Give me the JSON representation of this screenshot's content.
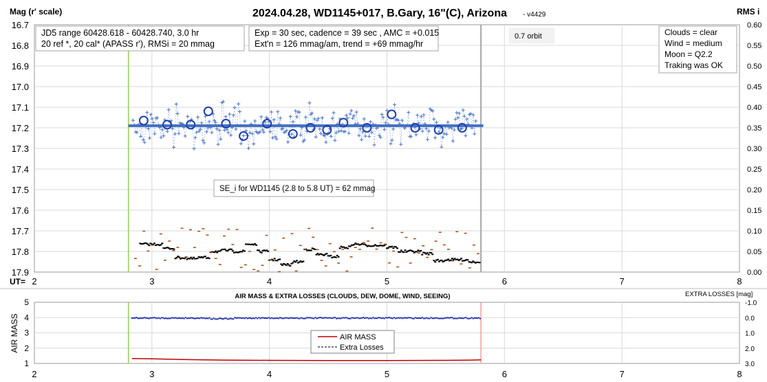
{
  "chart_data": [
    {
      "type": "scatter",
      "title": "2024.04.28, WD1145+017, B.Gary, 16\"(C), Arizona",
      "version": "- v4429",
      "ylabel": "Mag (r' scale)",
      "y2label": "RMS i",
      "xprefix": "UT=",
      "xlim": [
        2,
        8
      ],
      "ylim": [
        16.7,
        17.9
      ],
      "y2lim": [
        0,
        0.6
      ],
      "x_ticks": [
        "2",
        "3",
        "4",
        "5",
        "6",
        "7",
        "8"
      ],
      "y_ticks": [
        "16.7",
        "16.8",
        "16.9",
        "17.0",
        "17.1",
        "17.2",
        "17.3",
        "17.4",
        "17.5",
        "17.6",
        "17.7",
        "17.8",
        "17.9"
      ],
      "y2_ticks": [
        "0.60",
        "0.55",
        "0.50",
        "0.45",
        "0.40",
        "0.35",
        "0.30",
        "0.25",
        "0.20",
        "0.15",
        "0.10",
        "0.05",
        "0.00"
      ],
      "grid": true,
      "colors": {
        "points": "#4a73c6",
        "binned": "#1f3fb0",
        "fit": "#4472c4",
        "rms": "#000000",
        "rms_raw": "#b0521a",
        "start": "#92d050",
        "end": "#a6a6a6"
      },
      "series": [
        {
          "name": "binned",
          "points": [
            [
              2.93,
              17.165
            ],
            [
              3.13,
              17.185
            ],
            [
              3.33,
              17.185
            ],
            [
              3.48,
              17.12
            ],
            [
              3.63,
              17.18
            ],
            [
              3.78,
              17.24
            ],
            [
              3.98,
              17.18
            ],
            [
              4.2,
              17.23
            ],
            [
              4.35,
              17.2
            ],
            [
              4.49,
              17.21
            ],
            [
              4.63,
              17.175
            ],
            [
              4.83,
              17.2
            ],
            [
              5.04,
              17.135
            ],
            [
              5.24,
              17.2
            ],
            [
              5.44,
              17.21
            ],
            [
              5.64,
              17.2
            ]
          ]
        },
        {
          "name": "fit",
          "x": [
            2.8,
            5.82
          ],
          "y": [
            17.19,
            17.19
          ]
        },
        {
          "name": "rms_segments",
          "points": [
            [
              2.9,
              17.765
            ],
            [
              3.0,
              17.765
            ],
            [
              3.1,
              17.785
            ],
            [
              3.2,
              17.83
            ],
            [
              3.3,
              17.835
            ],
            [
              3.4,
              17.83
            ],
            [
              3.5,
              17.8
            ],
            [
              3.6,
              17.795
            ],
            [
              3.7,
              17.8
            ],
            [
              3.8,
              17.765
            ],
            [
              3.9,
              17.8
            ],
            [
              4.0,
              17.84
            ],
            [
              4.1,
              17.865
            ],
            [
              4.2,
              17.85
            ],
            [
              4.3,
              17.79
            ],
            [
              4.4,
              17.815
            ],
            [
              4.5,
              17.825
            ],
            [
              4.6,
              17.78
            ],
            [
              4.7,
              17.765
            ],
            [
              4.8,
              17.77
            ],
            [
              4.9,
              17.77
            ],
            [
              5.0,
              17.78
            ],
            [
              5.1,
              17.8
            ],
            [
              5.2,
              17.8
            ],
            [
              5.3,
              17.81
            ],
            [
              5.4,
              17.845
            ],
            [
              5.5,
              17.84
            ],
            [
              5.6,
              17.84
            ],
            [
              5.7,
              17.85
            ]
          ]
        }
      ],
      "markers": {
        "start": 2.8,
        "end": 5.8
      },
      "annotations": {
        "info_left": [
          "JD5 range 60428.618 - 60428.740, 3.0 hr",
          "20 ref *, 20 cal*  (APASS r'), RMSi = 20 mmag"
        ],
        "info_mid": [
          "Exp = 30 sec, cadence = 39 sec , AMC = +0.015",
          "Ext'n = 126 mmag/am, trend = +69 mmag/hr"
        ],
        "orbit": "0.7 orbit",
        "conditions": [
          "Clouds = clear",
          "Wind    = medium",
          "Moon   = Q2.2",
          "Traking was OK"
        ],
        "se": "SE_i for WD1145 (2.8 to 5.8 UT) = 62 mmag"
      }
    },
    {
      "type": "line",
      "title": "AIR MASS & EXTRA LOSSES (CLOUDS, DEW, DOME, WIND, SEEING)",
      "ylabel": "AIR MASS",
      "y2label": "EXTRA LOSSES [mag]",
      "xlim": [
        2,
        8
      ],
      "ylim": [
        1,
        5
      ],
      "y2lim": [
        -1.0,
        3.0
      ],
      "x_ticks": [
        "2",
        "3",
        "4",
        "5",
        "6",
        "7",
        "8"
      ],
      "y_ticks": [
        "5",
        "4",
        "3",
        "2",
        "1"
      ],
      "y2_ticks": [
        "-1.0",
        "0.0",
        "1.0",
        "2.0",
        "3.0"
      ],
      "grid": true,
      "colors": {
        "airmass": "#c00000",
        "losses": "#1f2fb0",
        "start": "#92d050",
        "end": "#ff9999"
      },
      "series": [
        {
          "name": "AIR MASS",
          "x": [
            2.83,
            3.0,
            3.3,
            3.6,
            4.0,
            4.5,
            5.0,
            5.5,
            5.72,
            5.8
          ],
          "y": [
            1.32,
            1.3,
            1.25,
            1.22,
            1.2,
            1.19,
            1.19,
            1.2,
            1.22,
            1.24
          ]
        },
        {
          "name": "Extra Losses",
          "x": [
            2.83,
            3.3,
            3.6,
            4.2,
            4.8,
            5.3,
            5.8
          ],
          "y": [
            0.04,
            0.03,
            0.06,
            0.02,
            0.0,
            0.01,
            0.02
          ]
        }
      ],
      "markers": {
        "start": 2.8,
        "end": 5.8
      }
    }
  ]
}
